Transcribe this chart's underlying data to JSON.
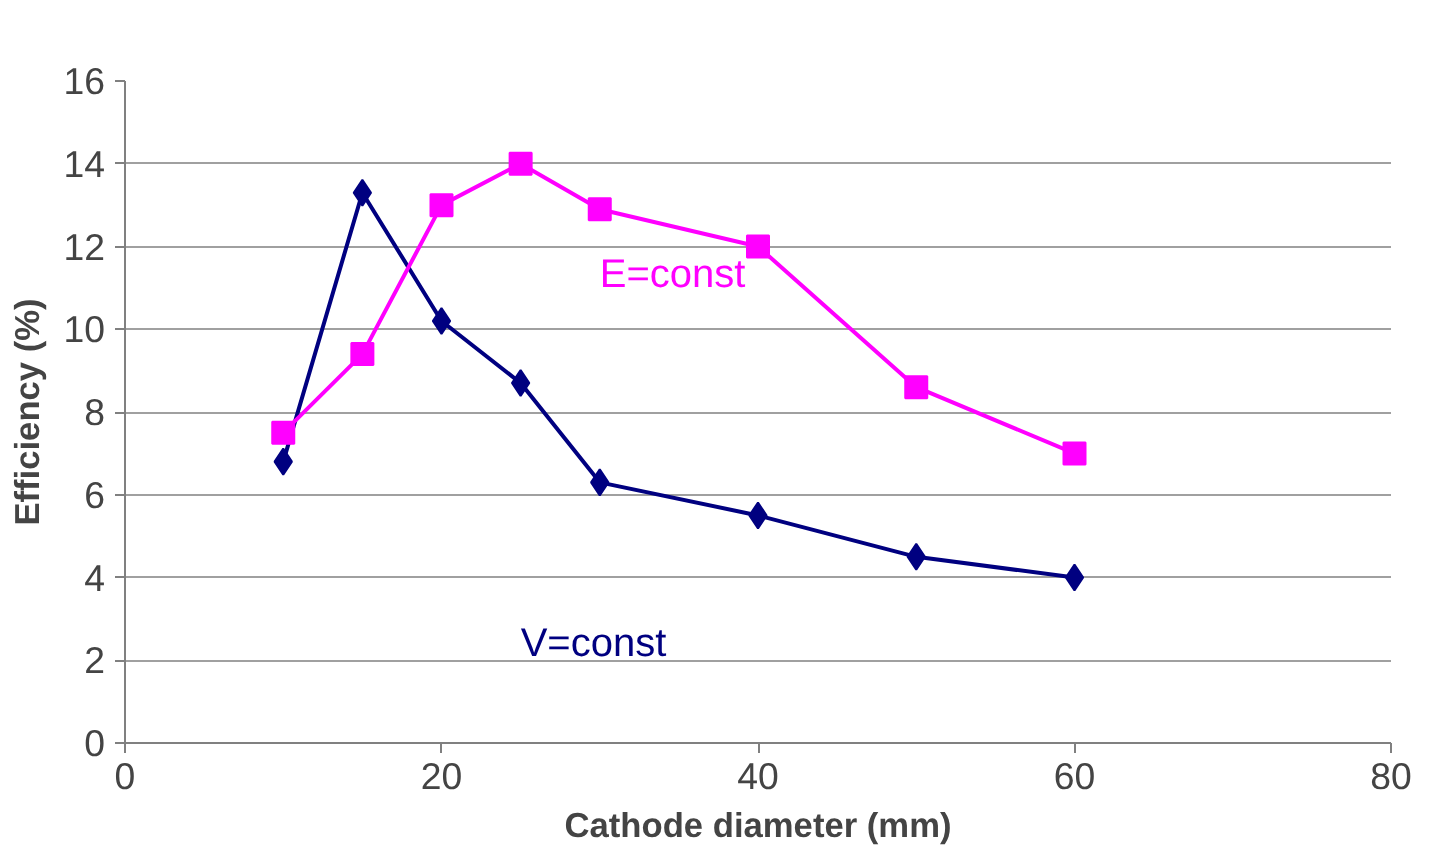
{
  "chart_data": {
    "type": "line",
    "xlabel": "Cathode diameter (mm)",
    "ylabel": "Efficiency (%)",
    "xlim": [
      0,
      80
    ],
    "xticks": [
      0,
      20,
      40,
      60,
      80
    ],
    "ylim": [
      0,
      16
    ],
    "yticks": [
      0,
      2,
      4,
      6,
      8,
      10,
      12,
      14,
      16
    ],
    "grid": "y",
    "line_style": "solid",
    "series": [
      {
        "name": "V=const",
        "color": "#000080",
        "marker": "diamond",
        "x": [
          10,
          15,
          20,
          25,
          30,
          40,
          50,
          60
        ],
        "values": [
          6.8,
          13.3,
          10.2,
          8.7,
          6.3,
          5.5,
          4.5,
          4.0
        ]
      },
      {
        "name": "E=const",
        "color": "#ff00ff",
        "marker": "square",
        "x": [
          10,
          15,
          20,
          25,
          30,
          40,
          50,
          60
        ],
        "values": [
          7.5,
          9.4,
          13.0,
          14.0,
          12.9,
          12.0,
          8.6,
          7.0
        ]
      }
    ]
  }
}
